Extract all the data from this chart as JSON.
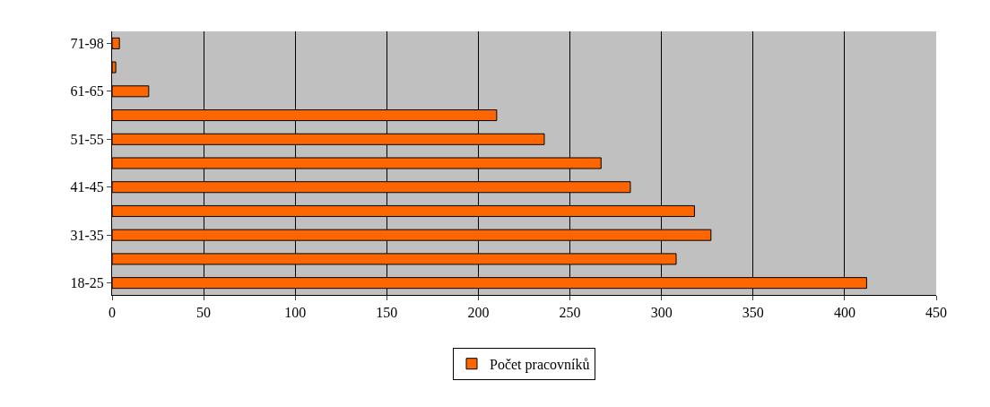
{
  "chart_data": {
    "type": "bar",
    "orientation": "horizontal",
    "categories": [
      "71-98",
      null,
      "61-65",
      null,
      "51-55",
      null,
      "41-45",
      null,
      "31-35",
      null,
      "18-25"
    ],
    "series": [
      {
        "name": "Počet pracovníků",
        "color": "#ff6600",
        "values": [
          4,
          2,
          20,
          210,
          236,
          267,
          283,
          318,
          327,
          308,
          412
        ]
      }
    ],
    "xlim": [
      0,
      450
    ],
    "xticks": [
      0,
      50,
      100,
      150,
      200,
      250,
      300,
      350,
      400,
      450
    ],
    "grid": "x",
    "legend": "bottom"
  }
}
